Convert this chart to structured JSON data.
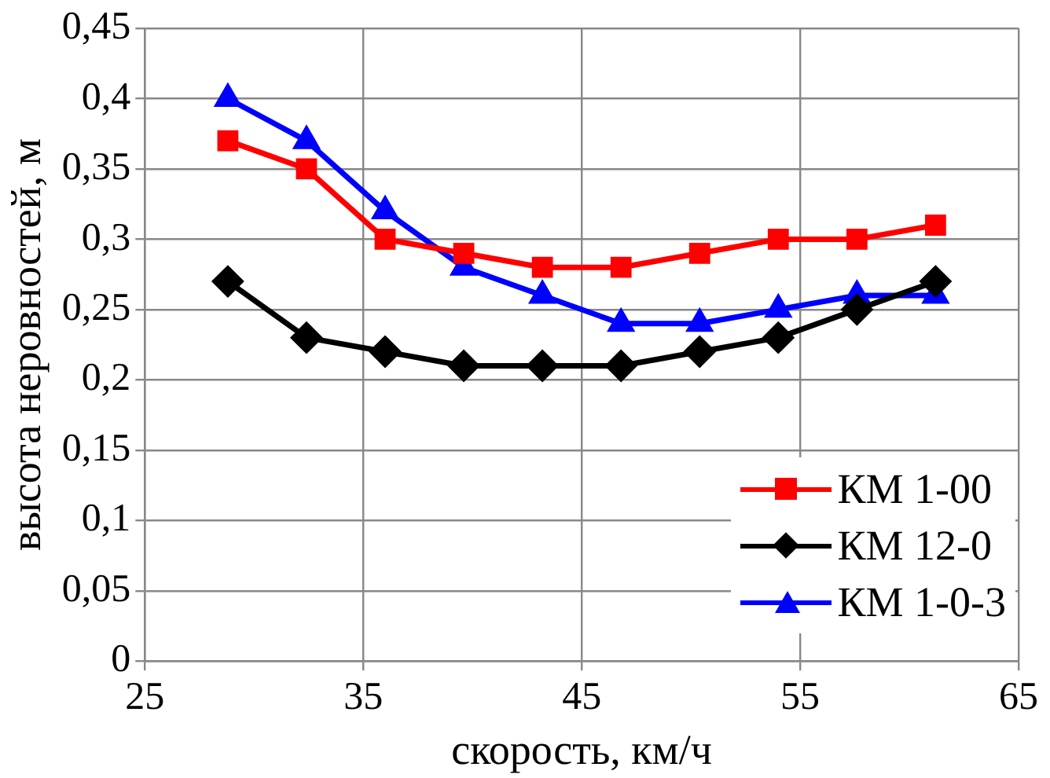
{
  "chart_data": {
    "type": "line",
    "xlabel": "скорость, км/ч",
    "ylabel": "высота неровностей, м",
    "x": [
      28.8,
      32.4,
      36,
      39.6,
      43.2,
      46.8,
      50.4,
      54,
      57.6,
      61.2
    ],
    "series": [
      {
        "name": "КМ 1-00",
        "color": "#ff0000",
        "marker": "square",
        "values": [
          0.37,
          0.35,
          0.3,
          0.29,
          0.28,
          0.28,
          0.29,
          0.3,
          0.3,
          0.31
        ]
      },
      {
        "name": "КМ 12-0",
        "color": "#000000",
        "marker": "diamond",
        "values": [
          0.27,
          0.23,
          0.22,
          0.21,
          0.21,
          0.21,
          0.22,
          0.23,
          0.25,
          0.27
        ]
      },
      {
        "name": "КМ 1-0-3",
        "color": "#0000ff",
        "marker": "triangle",
        "values": [
          0.4,
          0.37,
          0.32,
          0.28,
          0.26,
          0.24,
          0.24,
          0.25,
          0.26,
          0.26
        ]
      }
    ],
    "xlim": [
      25,
      65
    ],
    "xticks": [
      25,
      35,
      45,
      55,
      65
    ],
    "ylim": [
      0,
      0.45
    ],
    "yticks": [
      {
        "value": 0,
        "label": "0"
      },
      {
        "value": 0.05,
        "label": "0,05"
      },
      {
        "value": 0.1,
        "label": "0,1"
      },
      {
        "value": 0.15,
        "label": "0,15"
      },
      {
        "value": 0.2,
        "label": "0,2"
      },
      {
        "value": 0.25,
        "label": "0,25"
      },
      {
        "value": 0.3,
        "label": "0,3"
      },
      {
        "value": 0.35,
        "label": "0,35"
      },
      {
        "value": 0.4,
        "label": "0,4"
      },
      {
        "value": 0.45,
        "label": "0,45"
      }
    ],
    "grid": true,
    "legend": "bottom right",
    "line_style": "solid"
  }
}
